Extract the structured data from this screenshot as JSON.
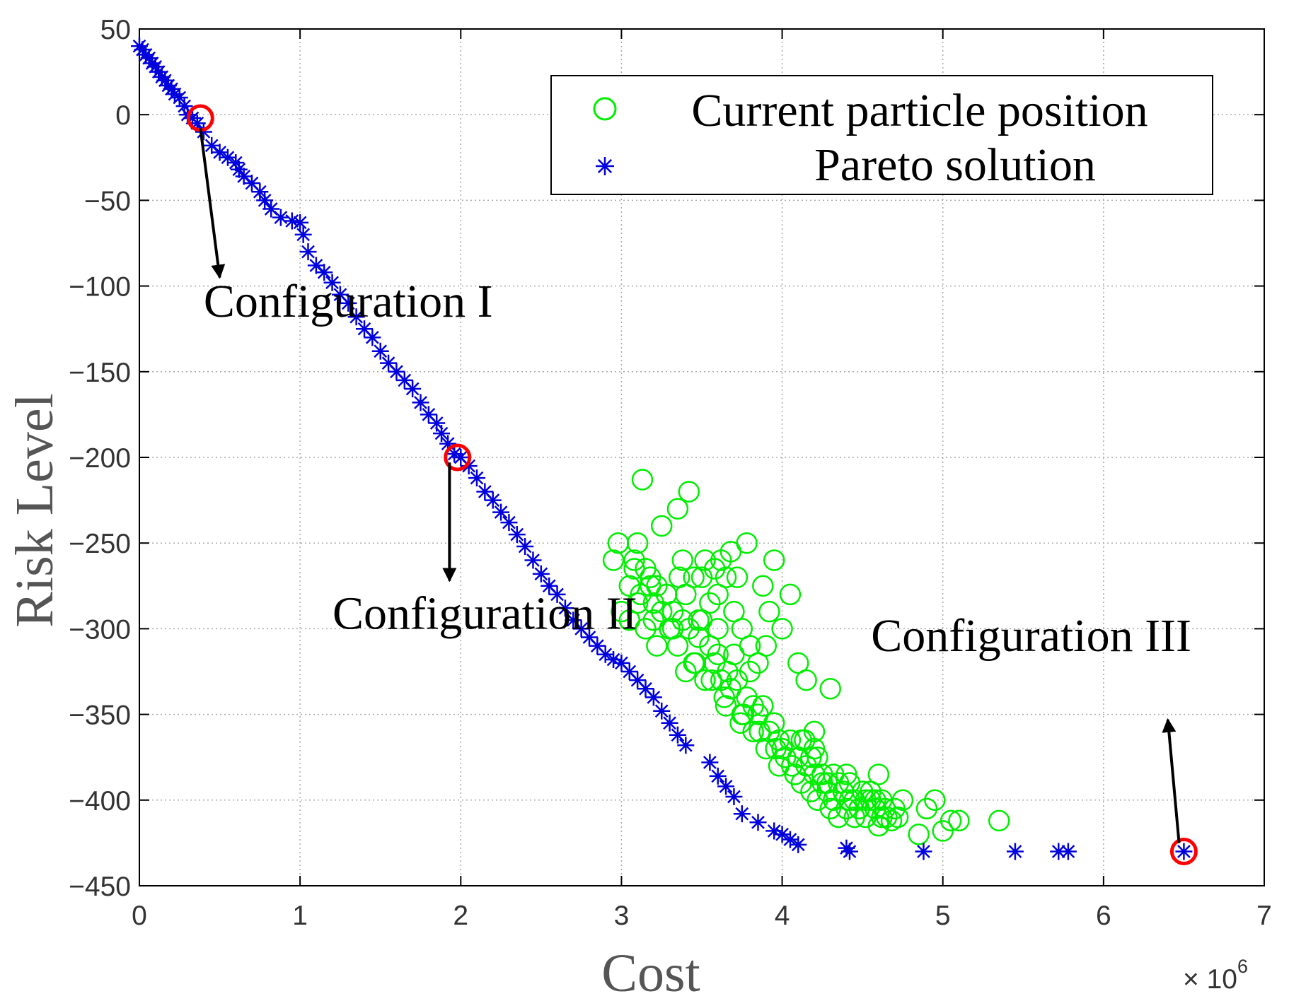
{
  "chart_data": {
    "type": "scatter",
    "xlabel": "Cost",
    "ylabel": "Risk Level",
    "x_multiplier": "× 10",
    "x_multiplier_exp": "6",
    "xlim": [
      0,
      7
    ],
    "ylim": [
      -450,
      50
    ],
    "xticks": [
      0,
      1,
      2,
      3,
      4,
      5,
      6,
      7
    ],
    "yticks": [
      50,
      0,
      -50,
      -100,
      -150,
      -200,
      -250,
      -300,
      -350,
      -400,
      -450
    ],
    "grid": true,
    "legend_position": "top-right",
    "colors": {
      "current": "#00ee00",
      "pareto": "#0000dd",
      "highlight": "#ff0000",
      "arrow": "#000000"
    },
    "series": [
      {
        "name": "Current particle position",
        "marker": "circle",
        "x": [
          2.95,
          2.98,
          3.0,
          3.05,
          3.08,
          3.1,
          3.12,
          3.15,
          3.18,
          3.2,
          3.22,
          3.25,
          3.28,
          3.3,
          3.32,
          3.35,
          3.38,
          3.4,
          3.42,
          3.45,
          3.48,
          3.5,
          3.52,
          3.55,
          3.58,
          3.6,
          3.62,
          3.65,
          3.68,
          3.7,
          3.72,
          3.75,
          3.78,
          3.8,
          3.82,
          3.85,
          3.88,
          3.9,
          3.92,
          3.95,
          3.98,
          4.0,
          4.02,
          4.05,
          4.08,
          4.1,
          4.12,
          4.15,
          4.18,
          4.2,
          4.22,
          4.25,
          4.28,
          4.3,
          4.32,
          4.35,
          4.38,
          4.4,
          4.42,
          4.45,
          4.48,
          4.5,
          4.52,
          4.55,
          4.58,
          4.6,
          4.62,
          4.65,
          4.7,
          4.75,
          3.13,
          3.25,
          3.35,
          3.42,
          3.52,
          3.78,
          3.95,
          4.05,
          3.6,
          3.65,
          3.7,
          3.75,
          3.8,
          3.85,
          3.9,
          3.62,
          3.68,
          3.72,
          3.58,
          3.88,
          3.92,
          4.0,
          4.1,
          4.2,
          4.3,
          4.15,
          4.25,
          3.45,
          3.3,
          3.38,
          3.55,
          3.48,
          3.05,
          3.15,
          3.22,
          3.6,
          3.66,
          3.74,
          3.82,
          3.98,
          4.06,
          4.14,
          4.22,
          4.35,
          4.45,
          4.55,
          4.62,
          4.68,
          4.85,
          4.9,
          4.95,
          5.0,
          5.05,
          5.1,
          5.35,
          3.4,
          3.5,
          3.36,
          3.28,
          3.18,
          3.08,
          4.2,
          4.5,
          4.6,
          4.4,
          4.28,
          4.38,
          4.48,
          4.58,
          4.08,
          3.96,
          3.86,
          3.76,
          3.64,
          3.56,
          3.46,
          3.32,
          3.2,
          3.1,
          4.12,
          4.18,
          4.32,
          4.42,
          4.52,
          4.64,
          4.72
        ],
        "y": [
          -260,
          -250,
          -290,
          -275,
          -260,
          -250,
          -280,
          -265,
          -270,
          -285,
          -275,
          -290,
          -280,
          -300,
          -290,
          -310,
          -295,
          -280,
          -300,
          -320,
          -305,
          -295,
          -330,
          -310,
          -320,
          -300,
          -330,
          -345,
          -335,
          -315,
          -330,
          -350,
          -340,
          -325,
          -360,
          -350,
          -345,
          -370,
          -360,
          -355,
          -380,
          -370,
          -375,
          -365,
          -385,
          -375,
          -390,
          -380,
          -395,
          -385,
          -400,
          -390,
          -395,
          -405,
          -400,
          -410,
          -395,
          -405,
          -400,
          -410,
          -405,
          -395,
          -410,
          -400,
          -405,
          -415,
          -400,
          -410,
          -405,
          -400,
          -213,
          -240,
          -230,
          -220,
          -260,
          -250,
          -260,
          -280,
          -280,
          -270,
          -290,
          -300,
          -310,
          -320,
          -310,
          -260,
          -255,
          -270,
          -265,
          -275,
          -290,
          -300,
          -320,
          -370,
          -335,
          -330,
          -385,
          -270,
          -300,
          -260,
          -285,
          -295,
          -295,
          -300,
          -310,
          -315,
          -325,
          -355,
          -345,
          -365,
          -380,
          -365,
          -375,
          -390,
          -400,
          -395,
          -410,
          -412,
          -420,
          -405,
          -400,
          -418,
          -412,
          -412,
          -412,
          -325,
          -270,
          -270,
          -280,
          -275,
          -265,
          -360,
          -395,
          -385,
          -385,
          -390,
          -395,
          -405,
          -400,
          -385,
          -370,
          -360,
          -350,
          -340,
          -330,
          -320,
          -300,
          -295,
          -285,
          -365,
          -375,
          -385,
          -390,
          -400,
          -405,
          -410
        ]
      },
      {
        "name": "Pareto solution",
        "marker": "asterisk",
        "x": [
          0.0,
          0.02,
          0.04,
          0.06,
          0.08,
          0.1,
          0.12,
          0.14,
          0.16,
          0.18,
          0.2,
          0.22,
          0.25,
          0.28,
          0.3,
          0.33,
          0.36,
          0.4,
          0.45,
          0.5,
          0.55,
          0.6,
          0.62,
          0.65,
          0.7,
          0.75,
          0.78,
          0.82,
          0.88,
          0.95,
          1.0,
          1.02,
          1.05,
          1.1,
          1.15,
          1.2,
          1.25,
          1.3,
          1.35,
          1.4,
          1.45,
          1.5,
          1.55,
          1.6,
          1.65,
          1.7,
          1.75,
          1.8,
          1.85,
          1.88,
          1.92,
          1.96,
          2.0,
          2.05,
          2.1,
          2.15,
          2.2,
          2.25,
          2.3,
          2.35,
          2.4,
          2.45,
          2.5,
          2.55,
          2.6,
          2.65,
          2.7,
          2.75,
          2.8,
          2.85,
          2.9,
          2.95,
          3.0,
          3.05,
          3.1,
          3.15,
          3.2,
          3.25,
          3.3,
          3.35,
          3.4,
          3.55,
          3.6,
          3.65,
          3.7,
          3.75,
          3.85,
          3.95,
          4.0,
          4.05,
          4.1,
          4.4,
          4.42,
          4.88,
          5.45,
          5.72,
          5.78,
          6.5
        ],
        "y": [
          40,
          38,
          35,
          33,
          30,
          28,
          25,
          22,
          20,
          17,
          15,
          12,
          10,
          5,
          0,
          -2,
          -5,
          -10,
          -18,
          -22,
          -25,
          -28,
          -32,
          -36,
          -40,
          -45,
          -50,
          -55,
          -60,
          -62,
          -63,
          -70,
          -80,
          -88,
          -92,
          -98,
          -105,
          -110,
          -118,
          -125,
          -130,
          -138,
          -145,
          -150,
          -155,
          -160,
          -168,
          -175,
          -180,
          -186,
          -192,
          -198,
          -200,
          -205,
          -212,
          -220,
          -225,
          -232,
          -238,
          -245,
          -252,
          -260,
          -268,
          -275,
          -280,
          -288,
          -295,
          -300,
          -305,
          -310,
          -315,
          -318,
          -320,
          -325,
          -330,
          -335,
          -340,
          -348,
          -355,
          -362,
          -368,
          -378,
          -386,
          -392,
          -398,
          -408,
          -413,
          -418,
          -420,
          -423,
          -426,
          -428,
          -430,
          -430,
          -430,
          -430,
          -430,
          -430
        ]
      }
    ],
    "highlighted_points": [
      {
        "x": 0.38,
        "y": -2
      },
      {
        "x": 1.98,
        "y": -200
      },
      {
        "x": 6.5,
        "y": -430
      }
    ],
    "annotations": [
      {
        "text": "Configuration I",
        "x": 1.3,
        "y": -118,
        "arrow_from": [
          0.38,
          -8
        ],
        "arrow_to": [
          0.5,
          -95
        ]
      },
      {
        "text": "Configuration II",
        "x": 2.15,
        "y": -300,
        "arrow_from": [
          1.93,
          -203
        ],
        "arrow_to": [
          1.93,
          -272
        ]
      },
      {
        "text": "Configuration III",
        "x": 5.55,
        "y": -313,
        "arrow_from": [
          6.47,
          -425
        ],
        "arrow_to": [
          6.4,
          -353
        ]
      }
    ]
  }
}
